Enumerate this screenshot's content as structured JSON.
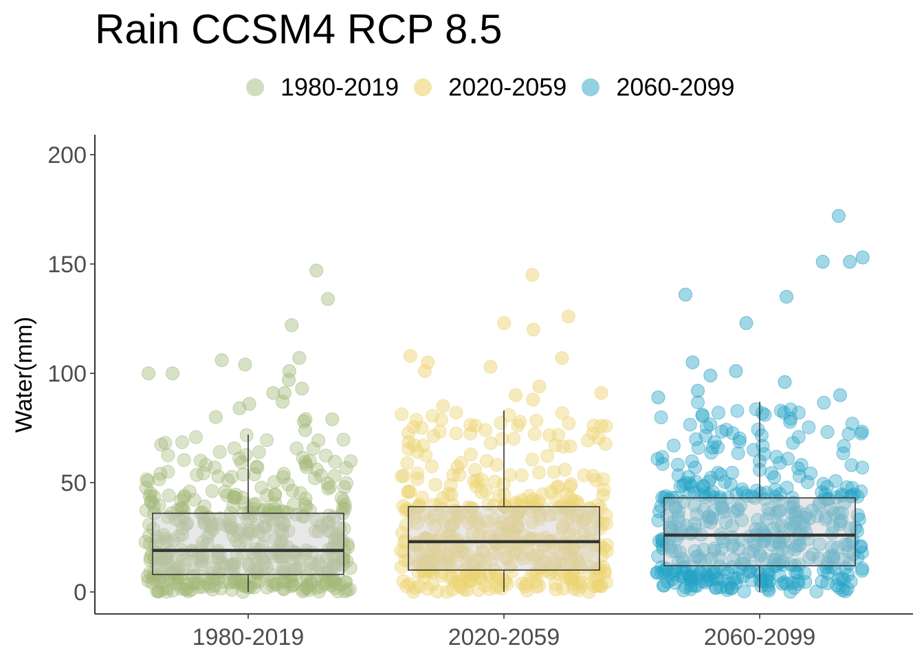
{
  "title": "Rain CCSM4 RCP 8.5",
  "legend": {
    "items": [
      {
        "label": "1980-2019",
        "color": "#a3b97a"
      },
      {
        "label": "2020-2059",
        "color": "#ecd373"
      },
      {
        "label": "2060-2099",
        "color": "#26a2c6"
      }
    ]
  },
  "chart_data": {
    "type": "box",
    "title": "Rain CCSM4 RCP 8.5",
    "xlabel": "",
    "ylabel": "Water(mm)",
    "ylim": [
      -10,
      210
    ],
    "yticks": [
      0,
      50,
      100,
      150,
      200
    ],
    "categories": [
      "1980-2019",
      "2020-2059",
      "2060-2099"
    ],
    "grid": false,
    "legend_position": "top",
    "series": [
      {
        "name": "1980-2019",
        "color": "#a3b97a",
        "box": {
          "whisker_low": 0,
          "q1": 8,
          "median": 19,
          "q3": 36,
          "whisker_high": 72
        },
        "outliers": [
          147,
          134,
          122,
          107,
          106,
          104,
          101,
          100,
          100,
          97,
          93,
          91,
          91,
          87,
          86,
          84,
          80,
          79,
          79,
          78,
          74
        ]
      },
      {
        "name": "2020-2059",
        "color": "#ecd373",
        "box": {
          "whisker_low": 0,
          "q1": 10,
          "median": 23,
          "q3": 39,
          "whisker_high": 83
        },
        "outliers": [
          145,
          126,
          123,
          120,
          108,
          107,
          105,
          103,
          101,
          94,
          91,
          90,
          88,
          85
        ]
      },
      {
        "name": "2060-2099",
        "color": "#26a2c6",
        "box": {
          "whisker_low": 0,
          "q1": 12,
          "median": 26,
          "q3": 43,
          "whisker_high": 87
        },
        "outliers": [
          172,
          153,
          151,
          151,
          136,
          135,
          123,
          105,
          101,
          99,
          96,
          92,
          90,
          89
        ]
      }
    ]
  }
}
